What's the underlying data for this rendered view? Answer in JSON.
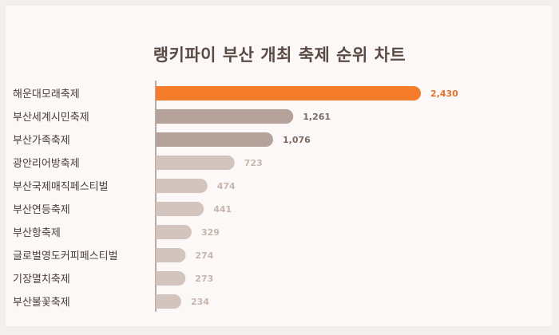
{
  "chart_data": {
    "type": "bar",
    "orientation": "horizontal",
    "title": "랭키파이 부산 개최 축제 순위 차트",
    "categories": [
      "해운대모래축제",
      "부산세계시민축제",
      "부산가족축제",
      "광안리어방축제",
      "부산국제매직페스티벌",
      "부산연등축제",
      "부산항축제",
      "글로벌영도커피페스티벌",
      "기장멸치축제",
      "부산불꽃축제"
    ],
    "values": [
      2430,
      1261,
      1076,
      723,
      474,
      441,
      329,
      274,
      273,
      234
    ],
    "value_labels": [
      "2,430",
      "1,261",
      "1,076",
      "723",
      "474",
      "441",
      "329",
      "274",
      "273",
      "234"
    ],
    "colors": {
      "top": "#f47c2b",
      "second_tier": "#b5a29b",
      "rest": "#d3c5be",
      "top_label": "#e5702a",
      "second_label": "#7d6a63",
      "rest_label": "#c6b6ae",
      "axis": "#b9aaa3",
      "category_text": "#4a3d38"
    },
    "grid": false,
    "legend": "none"
  }
}
